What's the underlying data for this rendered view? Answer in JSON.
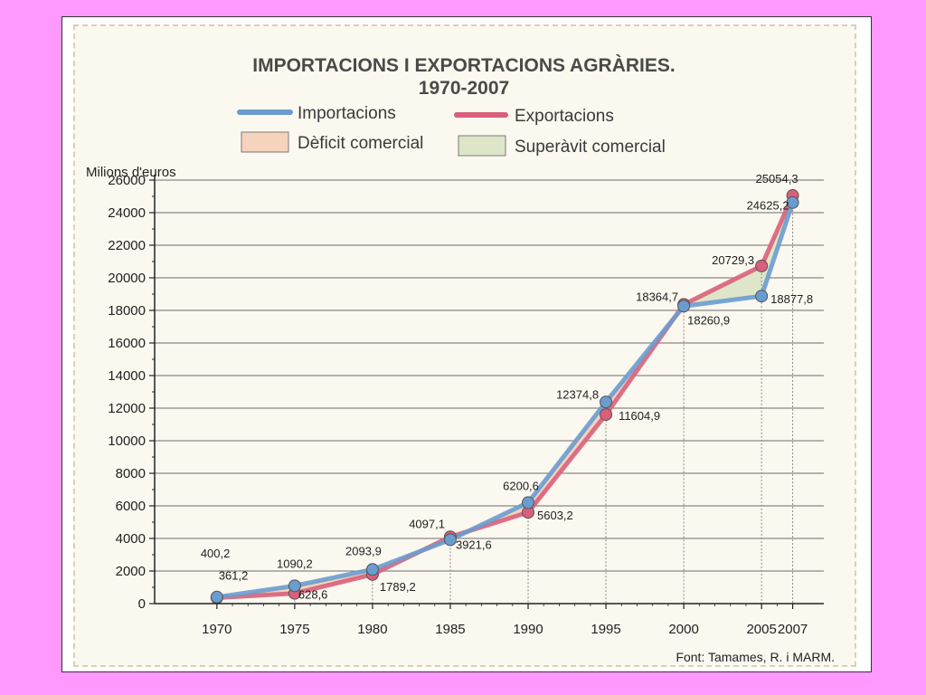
{
  "chart_data": {
    "type": "line",
    "title": "IMPORTACIONS I EXPORTACIONS AGRÀRIES.",
    "subtitle": "1970-2007",
    "ylabel": "Milions d'euros",
    "source": "Font: Tamames, R. i MARM.",
    "ylim": [
      0,
      26000
    ],
    "yticks": [
      "0",
      "2000",
      "4000",
      "6000",
      "8000",
      "10000",
      "12000",
      "14000",
      "16000",
      "18000",
      "20000",
      "22000",
      "24000",
      "26000"
    ],
    "x": [
      1970,
      1975,
      1980,
      1985,
      1990,
      1995,
      2000,
      2005,
      2007
    ],
    "xtick_labels": [
      "1970",
      "1975",
      "1980",
      "1985",
      "1990",
      "1995",
      "2000",
      "2005",
      "2007"
    ],
    "grid": true,
    "legend": [
      {
        "label": "Importacions",
        "kind": "line",
        "color": "#6a9ccf"
      },
      {
        "label": "Exportacions",
        "kind": "line",
        "color": "#d9607a"
      },
      {
        "label": "Dèficit comercial",
        "kind": "area",
        "color": "#f6d3bd"
      },
      {
        "label": "Superàvit comercial",
        "kind": "area",
        "color": "#dde6c8"
      }
    ],
    "series": [
      {
        "name": "Importacions",
        "color": "#6a9ccf",
        "values": [
          400.2,
          1090.2,
          2093.9,
          3921.6,
          6200.6,
          12374.8,
          18260.9,
          18877.8,
          24625.2
        ],
        "labels": [
          "400,2",
          "1090,2",
          "2093,9",
          "3921,6",
          "6200,6",
          "12374,8",
          "18260,9",
          "18877,8",
          "24625,2"
        ]
      },
      {
        "name": "Exportacions",
        "color": "#d9607a",
        "values": [
          361.2,
          628.6,
          1789.2,
          4097.1,
          5603.2,
          11604.9,
          18364.7,
          20729.3,
          25054.3
        ],
        "labels": [
          "361,2",
          "628,6",
          "1789,2",
          "4097,1",
          "5603,2",
          "11604,9",
          "18364,7",
          "20729,3",
          "25054,3"
        ]
      }
    ],
    "deficit_color": "#f6d3bd",
    "surplus_color": "#dde6c8"
  }
}
